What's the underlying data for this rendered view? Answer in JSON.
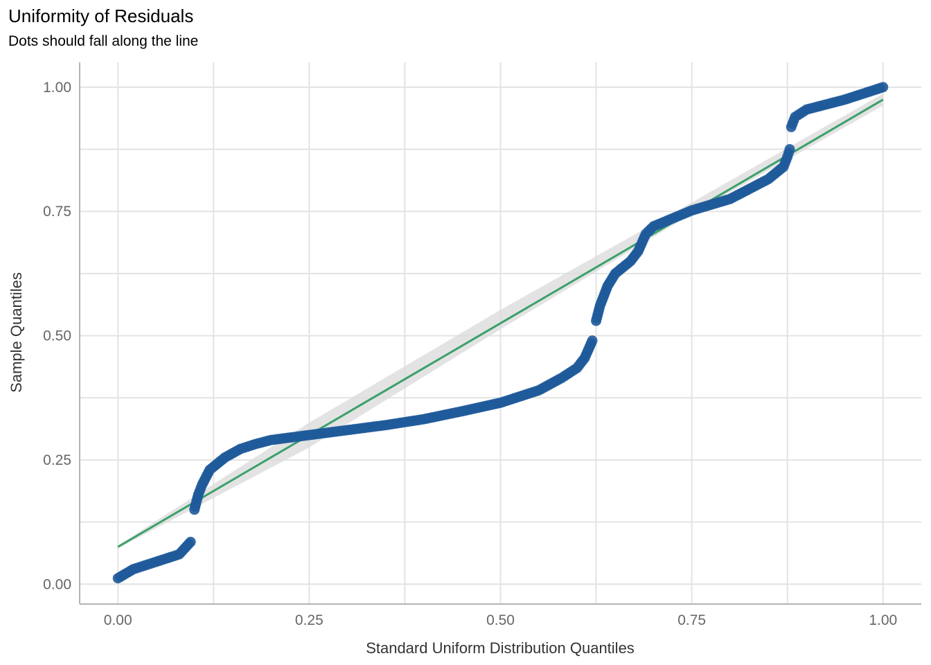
{
  "chart_data": {
    "type": "scatter",
    "title": "Uniformity of Residuals",
    "subtitle": "Dots should fall along the line",
    "xlabel": "Standard Uniform Distribution Quantiles",
    "ylabel": "Sample Quantiles",
    "xlim": [
      -0.05,
      1.05
    ],
    "ylim": [
      -0.04,
      1.05
    ],
    "x_ticks": [
      "0.00",
      "0.25",
      "0.50",
      "0.75",
      "1.00"
    ],
    "y_ticks": [
      "0.00",
      "0.25",
      "0.50",
      "0.75",
      "1.00"
    ],
    "grid": true,
    "colors": {
      "points": "#1f5a9a",
      "line": "#3aa06b",
      "band": "#d9d9d9",
      "grid": "#e3e3e3"
    },
    "reference_line": {
      "x": [
        0,
        1
      ],
      "y": [
        0.075,
        0.975
      ]
    },
    "confidence_band": {
      "x": [
        0,
        0.25,
        0.5,
        0.75,
        1
      ],
      "lower": [
        0.072,
        0.275,
        0.513,
        0.745,
        0.963
      ],
      "upper": [
        0.078,
        0.325,
        0.552,
        0.768,
        0.987
      ]
    },
    "series": [
      {
        "x": [
          0.0,
          0.02,
          0.05,
          0.08,
          0.095,
          0.1,
          0.105,
          0.11,
          0.12,
          0.14,
          0.16,
          0.18,
          0.2,
          0.25,
          0.3,
          0.35,
          0.4,
          0.45,
          0.5,
          0.55,
          0.58,
          0.6,
          0.61,
          0.62,
          0.625,
          0.63,
          0.64,
          0.65,
          0.67,
          0.68,
          0.69,
          0.7,
          0.75,
          0.8,
          0.85,
          0.87,
          0.875,
          0.878,
          0.88,
          0.885,
          0.9,
          0.95,
          1.0
        ],
        "y": [
          0.012,
          0.03,
          0.045,
          0.06,
          0.085,
          0.15,
          0.18,
          0.2,
          0.23,
          0.255,
          0.272,
          0.282,
          0.29,
          0.3,
          0.31,
          0.32,
          0.332,
          0.348,
          0.365,
          0.39,
          0.415,
          0.435,
          0.455,
          0.49,
          0.53,
          0.56,
          0.6,
          0.625,
          0.65,
          0.67,
          0.705,
          0.72,
          0.752,
          0.775,
          0.815,
          0.84,
          0.86,
          0.875,
          0.92,
          0.94,
          0.955,
          0.975,
          1.0
        ]
      }
    ]
  }
}
